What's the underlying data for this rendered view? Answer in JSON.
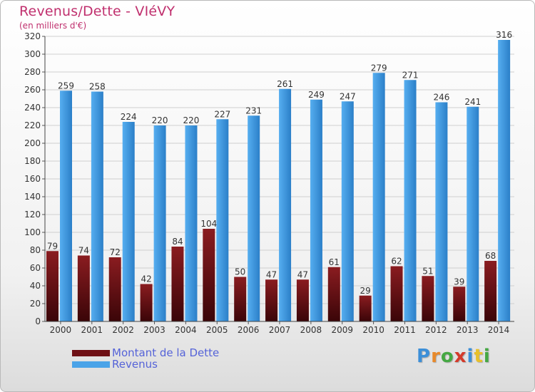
{
  "header": {
    "title": "Revenus/Dette - VIéVY",
    "subtitle": "(en milliers d'€)"
  },
  "legend": {
    "items": [
      {
        "label": "Montant de la Dette",
        "color": "#6e1015"
      },
      {
        "label": "Revenus",
        "color": "#4aa3e8"
      }
    ]
  },
  "logo": {
    "letters": [
      {
        "char": "P",
        "color": "#3c8fd8"
      },
      {
        "char": "r",
        "color": "#e8892a"
      },
      {
        "char": "o",
        "color": "#45a843"
      },
      {
        "char": "x",
        "color": "#d43a2a"
      },
      {
        "char": "i",
        "color": "#3c8fd8"
      },
      {
        "char": "t",
        "color": "#e8c02a"
      },
      {
        "char": "i",
        "color": "#45a843"
      }
    ]
  },
  "chart_data": {
    "type": "bar",
    "categories": [
      "2000",
      "2001",
      "2002",
      "2003",
      "2004",
      "2005",
      "2006",
      "2007",
      "2008",
      "2009",
      "2010",
      "2011",
      "2012",
      "2013",
      "2014"
    ],
    "series": [
      {
        "name": "Montant de la Dette",
        "values": [
          79,
          74,
          72,
          42,
          84,
          104,
          50,
          47,
          47,
          61,
          29,
          62,
          51,
          39,
          68
        ],
        "color_top": "#8a1c20",
        "color_bottom": "#3a0508"
      },
      {
        "name": "Revenus",
        "values": [
          259,
          258,
          224,
          220,
          220,
          227,
          231,
          261,
          249,
          247,
          279,
          271,
          246,
          241,
          316
        ],
        "color_top": "#56aef0",
        "color_bottom": "#2b7fc8"
      }
    ],
    "yticks": [
      0,
      20,
      40,
      60,
      80,
      100,
      120,
      140,
      160,
      180,
      200,
      220,
      240,
      260,
      280,
      300,
      320
    ],
    "ylim": [
      0,
      320
    ],
    "grid": true,
    "legend_position": "bottom-left"
  }
}
